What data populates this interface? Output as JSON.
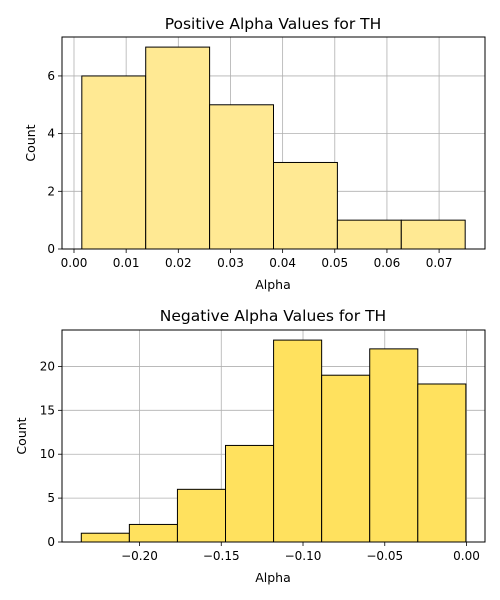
{
  "chart_data": [
    {
      "type": "bar",
      "title": "Positive Alpha Values for TH",
      "xlabel": "Alpha",
      "ylabel": "Count",
      "bin_edges": [
        0.0015,
        0.01375,
        0.026,
        0.03825,
        0.0505,
        0.06275,
        0.075
      ],
      "values": [
        6,
        7,
        5,
        3,
        1,
        1
      ],
      "xlim": [
        -0.0023,
        0.0788
      ],
      "ylim": [
        0,
        7.35
      ],
      "xticks": [
        0.0,
        0.01,
        0.02,
        0.03,
        0.04,
        0.05,
        0.06,
        0.07
      ],
      "xtick_labels": [
        "0.00",
        "0.01",
        "0.02",
        "0.03",
        "0.04",
        "0.05",
        "0.06",
        "0.07"
      ],
      "yticks": [
        0,
        2,
        4,
        6
      ],
      "ytick_labels": [
        "0",
        "2",
        "4",
        "6"
      ],
      "grid": true,
      "bar_color": "#ffe993",
      "edge_color": "#000000",
      "grid_color": "#b0b0b0"
    },
    {
      "type": "bar",
      "title": "Negative Alpha Values for TH",
      "xlabel": "Alpha",
      "ylabel": "Count",
      "bin_edges": [
        -0.2356,
        -0.2062,
        -0.1768,
        -0.1474,
        -0.118,
        -0.0886,
        -0.0592,
        -0.0298,
        -0.0004
      ],
      "values": [
        1,
        2,
        6,
        11,
        23,
        19,
        22,
        18
      ],
      "xlim": [
        -0.2474,
        0.0113
      ],
      "ylim": [
        0,
        24.15
      ],
      "xticks": [
        -0.2,
        -0.15,
        -0.1,
        -0.05,
        0.0
      ],
      "xtick_labels": [
        "−0.20",
        "−0.15",
        "−0.10",
        "−0.05",
        "0.00"
      ],
      "yticks": [
        0,
        5,
        10,
        15,
        20
      ],
      "ytick_labels": [
        "0",
        "5",
        "10",
        "15",
        "20"
      ],
      "grid": true,
      "bar_color": "#ffe15e",
      "edge_color": "#000000",
      "grid_color": "#b0b0b0"
    }
  ]
}
